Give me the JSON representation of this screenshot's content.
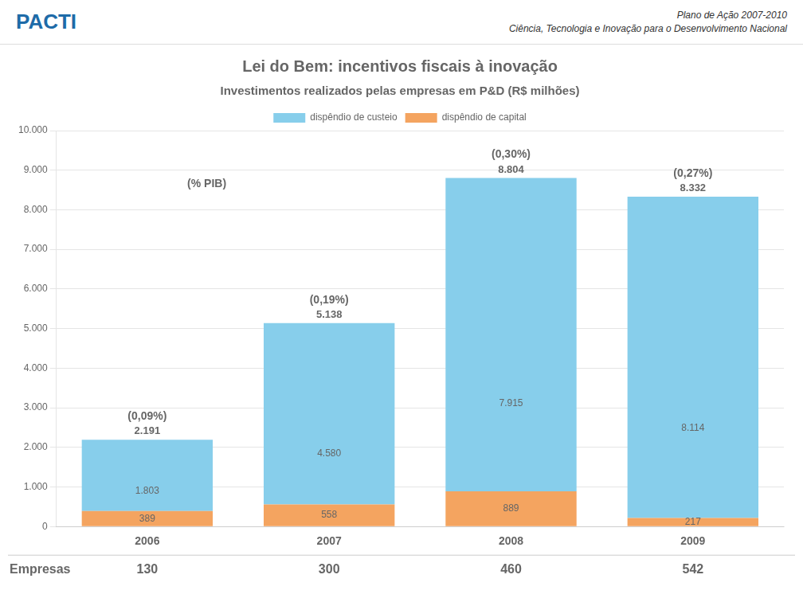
{
  "chart_data": {
    "type": "bar",
    "title": "Lei do Bem: incentivos fiscais à inovação",
    "subtitle": "Investimentos realizados pelas empresas em P&D (R$ milhões)",
    "categories": [
      "2006",
      "2007",
      "2008",
      "2009"
    ],
    "series": [
      {
        "name": "dispêndio de capital",
        "color": "#F4A460",
        "values": [
          389,
          558,
          889,
          217
        ],
        "value_labels": [
          "389",
          "558",
          "889",
          "217"
        ]
      },
      {
        "name": "dispêndio de custeio",
        "color": "#87CEEB",
        "values": [
          1803,
          4580,
          7915,
          8114
        ],
        "value_labels": [
          "1.803",
          "4.580",
          "7.915",
          "8.114"
        ]
      }
    ],
    "stacked": true,
    "data_labels": true,
    "totals": [
      2191,
      5138,
      8804,
      8332
    ],
    "total_labels": [
      "2.191",
      "5.138",
      "8.804",
      "8.332"
    ],
    "annotations": {
      "header": [
        "PACTI",
        "Plano de Ação 2007-2010",
        "Ciência, Tecnologia e Inovação para o Desenvolvimento Nacional"
      ],
      "pib_title": "(% PIB)",
      "pib_labels": [
        "(0,09%)",
        "(0,19%)",
        "(0,30%)",
        "(0,27%)"
      ],
      "empresas_title": "Empresas",
      "empresas": [
        130,
        300,
        460,
        542
      ]
    },
    "ylim": [
      0,
      10000
    ],
    "yticks": [
      0,
      {
        "value": 1000,
        "label": "1.000"
      },
      {
        "value": 2000,
        "label": "2.000"
      },
      {
        "value": 3000,
        "label": "3.000"
      },
      {
        "value": 4000,
        "label": "4.000"
      },
      {
        "value": 5000,
        "label": "5.000"
      },
      {
        "value": 6000,
        "label": "6.000"
      },
      {
        "value": 7000,
        "label": "7.000"
      },
      {
        "value": 8000,
        "label": "8.000"
      },
      {
        "value": 9000,
        "label": "9.000"
      },
      {
        "value": 10000,
        "label": "10.000"
      }
    ],
    "grid": true,
    "legend": "top"
  }
}
